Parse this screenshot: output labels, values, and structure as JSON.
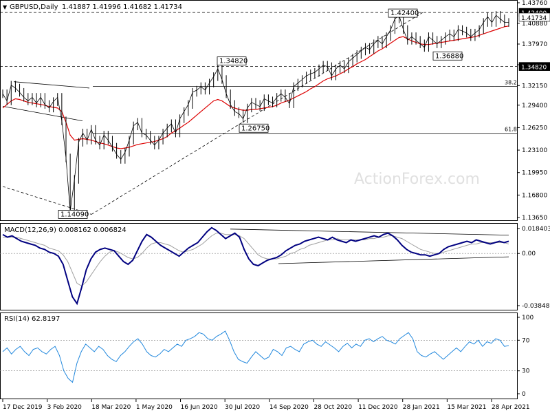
{
  "chart_data": [
    {
      "type": "line",
      "panel": "price",
      "title": "GBPUSD,Daily",
      "ohlc_readout": "1.41887 1.41996 1.41682 1.41734",
      "y_ticks": [
        "1.43760",
        "1.40880",
        "1.37970",
        "1.35070",
        "1.32150",
        "1.29400",
        "1.26250",
        "1.23100",
        "1.19950",
        "1.16800",
        "1.13650"
      ],
      "ylim": [
        1.1365,
        1.4376
      ],
      "x_ticks": [
        "17 Dec 2019",
        "3 Feb 2020",
        "18 Mar 2020",
        "1 May 2020",
        "16 Jun 2020",
        "30 Jul 2020",
        "14 Sep 2020",
        "28 Oct 2020",
        "11 Dec 2020",
        "28 Jan 2021",
        "15 Mar 2021",
        "28 Apr 2021"
      ],
      "price_tags": [
        {
          "text": "1.42400",
          "value": 1.424,
          "color": "#ffffff",
          "bg": "#000000"
        },
        {
          "text": "1.41734",
          "value": 1.41734,
          "color": "#000000",
          "bg": "#ffffff"
        },
        {
          "text": "1.34820",
          "value": 1.3482,
          "color": "#ffffff",
          "bg": "#000000"
        }
      ],
      "annotations": [
        "1.42400",
        "1.36880",
        "1.34820",
        "1.26750",
        "1.14090"
      ],
      "fib_levels": [
        {
          "label": "38.2",
          "value": 1.3205
        },
        {
          "label": "61.8",
          "value": 1.2545
        }
      ],
      "horizontal_levels": [
        1.424,
        1.3482
      ],
      "series": [
        {
          "values": [
            1.31,
            1.3,
            1.322,
            1.318,
            1.312,
            1.305,
            1.3,
            1.305,
            1.297,
            1.305,
            1.295,
            1.29,
            1.299,
            1.305,
            1.272,
            1.22,
            1.145,
            1.19,
            1.242,
            1.255,
            1.245,
            1.26,
            1.245,
            1.238,
            1.252,
            1.245,
            1.235,
            1.225,
            1.218,
            1.228,
            1.245,
            1.265,
            1.27,
            1.255,
            1.252,
            1.245,
            1.238,
            1.245,
            1.255,
            1.262,
            1.268,
            1.255,
            1.275,
            1.285,
            1.295,
            1.312,
            1.315,
            1.32,
            1.315,
            1.325,
            1.334,
            1.345,
            1.33,
            1.31,
            1.295,
            1.285,
            1.282,
            1.275,
            1.29,
            1.298,
            1.295,
            1.292,
            1.303,
            1.3,
            1.297,
            1.305,
            1.31,
            1.305,
            1.296,
            1.32,
            1.325,
            1.33,
            1.335,
            1.338,
            1.34,
            1.345,
            1.35,
            1.348,
            1.335,
            1.345,
            1.35,
            1.345,
            1.355,
            1.36,
            1.365,
            1.37,
            1.375,
            1.372,
            1.38,
            1.385,
            1.38,
            1.39,
            1.4,
            1.415,
            1.42,
            1.4,
            1.385,
            1.39,
            1.385,
            1.38,
            1.375,
            1.39,
            1.385,
            1.38,
            1.385,
            1.39,
            1.394,
            1.39,
            1.4,
            1.398,
            1.395,
            1.39,
            1.395,
            1.4,
            1.41,
            1.418,
            1.41,
            1.42,
            1.415,
            1.41,
            1.41
          ]
        },
        {
          "values": [
            1.29,
            1.295,
            1.3,
            1.303,
            1.302,
            1.3,
            1.298,
            1.297,
            1.296,
            1.295,
            1.294,
            1.292,
            1.291,
            1.29,
            1.285,
            1.27,
            1.252,
            1.245,
            1.246,
            1.247,
            1.246,
            1.245,
            1.243,
            1.241,
            1.24,
            1.238,
            1.236,
            1.234,
            1.233,
            1.234,
            1.235,
            1.237,
            1.239,
            1.24,
            1.241,
            1.242,
            1.243,
            1.245,
            1.247,
            1.25,
            1.255,
            1.258,
            1.262,
            1.266,
            1.27,
            1.275,
            1.28,
            1.285,
            1.29,
            1.295,
            1.3,
            1.302,
            1.3,
            1.296,
            1.292,
            1.29,
            1.288,
            1.287,
            1.287,
            1.288,
            1.288,
            1.289,
            1.29,
            1.291,
            1.292,
            1.294,
            1.297,
            1.299,
            1.301,
            1.304,
            1.307,
            1.31,
            1.313,
            1.317,
            1.32,
            1.324,
            1.328,
            1.331,
            1.333,
            1.335,
            1.338,
            1.341,
            1.345,
            1.348,
            1.352,
            1.355,
            1.358,
            1.362,
            1.366,
            1.37,
            1.373,
            1.377,
            1.381,
            1.385,
            1.389,
            1.39,
            1.387,
            1.384,
            1.382,
            1.38,
            1.379,
            1.379,
            1.38,
            1.381,
            1.382,
            1.383,
            1.384,
            1.385,
            1.386,
            1.387,
            1.388,
            1.389,
            1.39,
            1.392,
            1.394,
            1.396,
            1.398,
            1.4,
            1.402,
            1.404,
            1.405
          ]
        }
      ]
    },
    {
      "type": "line",
      "panel": "macd",
      "title": "MACD(12,26,9) 0.008162 0.006824",
      "y_ticks": [
        "0.018403",
        "0.00",
        "-0.038483"
      ],
      "ylim": [
        -0.038483,
        0.018403
      ],
      "series": [
        {
          "values": [
            0.014,
            0.012,
            0.013,
            0.011,
            0.009,
            0.008,
            0.007,
            0.006,
            0.004,
            0.003,
            0.001,
            0.0,
            -0.002,
            -0.008,
            -0.02,
            -0.032,
            -0.037,
            -0.025,
            -0.012,
            -0.004,
            0.001,
            0.003,
            0.004,
            0.003,
            0.002,
            -0.002,
            -0.006,
            -0.008,
            -0.005,
            0.002,
            0.009,
            0.014,
            0.012,
            0.009,
            0.006,
            0.004,
            0.002,
            0.0,
            -0.002,
            0.001,
            0.004,
            0.006,
            0.008,
            0.012,
            0.016,
            0.019,
            0.017,
            0.014,
            0.011,
            0.013,
            0.015,
            0.012,
            0.003,
            -0.004,
            -0.008,
            -0.009,
            -0.007,
            -0.005,
            -0.004,
            -0.003,
            -0.001,
            0.002,
            0.004,
            0.006,
            0.007,
            0.009,
            0.01,
            0.011,
            0.012,
            0.011,
            0.01,
            0.012,
            0.01,
            0.009,
            0.008,
            0.01,
            0.009,
            0.01,
            0.011,
            0.012,
            0.013,
            0.012,
            0.014,
            0.015,
            0.013,
            0.01,
            0.006,
            0.003,
            0.001,
            0.0,
            -0.001,
            -0.001,
            -0.002,
            -0.001,
            0.0,
            0.003,
            0.005,
            0.006,
            0.007,
            0.008,
            0.009,
            0.008,
            0.01,
            0.009,
            0.008,
            0.007,
            0.008,
            0.009,
            0.008,
            0.009
          ]
        },
        {
          "values": [
            0.012,
            0.012,
            0.012,
            0.012,
            0.011,
            0.01,
            0.009,
            0.008,
            0.007,
            0.006,
            0.004,
            0.003,
            0.002,
            -0.001,
            -0.006,
            -0.014,
            -0.022,
            -0.024,
            -0.021,
            -0.016,
            -0.011,
            -0.006,
            -0.002,
            0.001,
            0.002,
            0.001,
            -0.001,
            -0.003,
            -0.004,
            -0.003,
            0.0,
            0.004,
            0.007,
            0.008,
            0.008,
            0.007,
            0.006,
            0.004,
            0.002,
            0.001,
            0.002,
            0.003,
            0.005,
            0.007,
            0.01,
            0.013,
            0.015,
            0.015,
            0.014,
            0.014,
            0.014,
            0.013,
            0.011,
            0.007,
            0.003,
            -0.001,
            -0.003,
            -0.004,
            -0.004,
            -0.004,
            -0.003,
            -0.002,
            0.0,
            0.001,
            0.003,
            0.004,
            0.006,
            0.007,
            0.008,
            0.009,
            0.01,
            0.01,
            0.011,
            0.01,
            0.01,
            0.01,
            0.01,
            0.01,
            0.01,
            0.011,
            0.011,
            0.012,
            0.012,
            0.013,
            0.013,
            0.012,
            0.011,
            0.009,
            0.007,
            0.005,
            0.003,
            0.002,
            0.001,
            0.0,
            0.0,
            0.001,
            0.002,
            0.003,
            0.004,
            0.005,
            0.006,
            0.007,
            0.007,
            0.008,
            0.008,
            0.008,
            0.008,
            0.008,
            0.008,
            0.007
          ]
        }
      ]
    },
    {
      "type": "line",
      "panel": "rsi",
      "title": "RSI(14) 62.8197",
      "y_ticks": [
        "100",
        "70",
        "30",
        "0"
      ],
      "ylim": [
        0,
        100
      ],
      "series": [
        {
          "values": [
            55,
            60,
            52,
            58,
            62,
            55,
            50,
            58,
            60,
            55,
            52,
            58,
            62,
            50,
            30,
            20,
            15,
            40,
            55,
            65,
            60,
            55,
            62,
            58,
            50,
            45,
            42,
            50,
            55,
            62,
            68,
            72,
            65,
            55,
            50,
            48,
            52,
            58,
            55,
            60,
            65,
            62,
            70,
            72,
            75,
            80,
            78,
            72,
            70,
            75,
            78,
            82,
            70,
            55,
            45,
            42,
            40,
            48,
            55,
            50,
            45,
            48,
            58,
            55,
            50,
            60,
            62,
            58,
            55,
            65,
            68,
            70,
            65,
            62,
            68,
            64,
            60,
            55,
            62,
            66,
            60,
            65,
            62,
            70,
            72,
            68,
            72,
            75,
            70,
            68,
            65,
            72,
            76,
            80,
            72,
            55,
            50,
            48,
            52,
            55,
            50,
            45,
            50,
            55,
            60,
            55,
            62,
            68,
            65,
            70,
            62,
            68,
            66,
            72,
            70,
            62,
            63
          ]
        }
      ]
    }
  ],
  "watermark": "ActionForex.com",
  "colors": {
    "price_line": "#000000",
    "ma_line": "#dd0000",
    "macd_line": "#000080",
    "signal_line": "#a0a0a0",
    "rsi_line": "#2288dd",
    "watermark": "#e0e0e0"
  }
}
